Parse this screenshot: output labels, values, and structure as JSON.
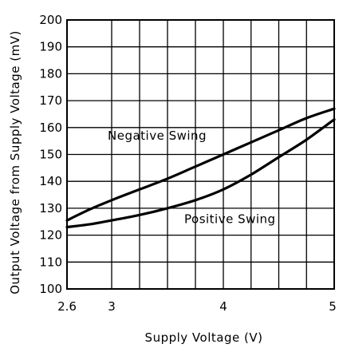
{
  "chart_data": {
    "type": "line",
    "title": "",
    "xlabel": "Supply Voltage (V)",
    "ylabel": "Output Voltage from Supply Voltage (mV)",
    "xlim": [
      2.6,
      5
    ],
    "ylim": [
      100,
      200
    ],
    "xticks": [
      2.6,
      3,
      3.25,
      3.5,
      3.75,
      4,
      4.25,
      4.5,
      4.75,
      5
    ],
    "xtick_labels": [
      "2.6",
      "3",
      "4",
      "5"
    ],
    "xtick_label_values": [
      2.6,
      3,
      4,
      5
    ],
    "yticks": [
      100,
      110,
      120,
      130,
      140,
      150,
      160,
      170,
      180,
      190,
      200
    ],
    "ytick_labels": [
      "100",
      "110",
      "120",
      "130",
      "140",
      "150",
      "160",
      "170",
      "180",
      "190",
      "200"
    ],
    "grid": true,
    "legend": "none",
    "series": [
      {
        "name": "Negative Swing",
        "x": [
          2.6,
          2.8,
          3.0,
          3.25,
          3.5,
          3.75,
          4.0,
          4.25,
          4.5,
          4.75,
          5.0
        ],
        "y": [
          125.5,
          129.5,
          133,
          137,
          141,
          145.5,
          150,
          154.5,
          159,
          163.5,
          167
        ]
      },
      {
        "name": "Positive Swing",
        "x": [
          2.6,
          2.8,
          3.0,
          3.25,
          3.5,
          3.75,
          4.0,
          4.25,
          4.5,
          4.75,
          5.0
        ],
        "y": [
          123,
          124,
          125.5,
          127.5,
          130,
          133,
          137,
          142.5,
          149,
          155.5,
          163
        ]
      }
    ],
    "annotations": [
      {
        "text": "Negative Swing",
        "series": "Negative Swing"
      },
      {
        "text": "Positive Swing",
        "series": "Positive Swing"
      }
    ]
  }
}
